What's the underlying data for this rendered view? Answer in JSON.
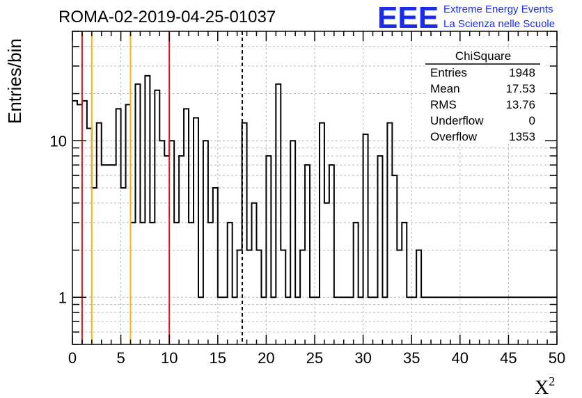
{
  "header": {
    "title": "ROMA-02-2019-04-25-01037"
  },
  "logo": {
    "mark": "EEE",
    "line1": "Extreme Energy Events",
    "line2": "La Scienza nelle Scuole",
    "color": "#1a2cf0"
  },
  "stats_box": {
    "name": "ChiSquare",
    "rows": [
      {
        "label": "Entries",
        "value": "1948"
      },
      {
        "label": "Mean",
        "value": "17.53"
      },
      {
        "label": "RMS",
        "value": "13.76"
      },
      {
        "label": "Underflow",
        "value": "0"
      },
      {
        "label": "Overflow",
        "value": "1353"
      }
    ]
  },
  "chart_data": {
    "type": "bar",
    "histogram_style": "step",
    "title": "ROMA-02-2019-04-25-01037",
    "xlabel": "X",
    "xlabel_superscript": "2",
    "ylabel": "Entries/bin",
    "xlim": [
      0,
      50
    ],
    "ylim": [
      0.5,
      50
    ],
    "yscale": "log",
    "grid": true,
    "bin_width": 0.5,
    "x_ticks": [
      "0",
      "5",
      "10",
      "15",
      "20",
      "25",
      "30",
      "35",
      "40",
      "45",
      "50"
    ],
    "y_ticks": [
      "1",
      "10"
    ],
    "values": [
      18,
      17,
      18,
      12,
      5,
      13,
      7,
      7,
      7,
      16,
      5,
      17,
      3,
      23,
      3,
      26,
      3,
      21,
      10,
      8,
      10,
      3,
      8,
      16,
      3,
      14,
      1,
      10,
      3,
      5,
      1,
      1,
      3,
      1,
      2,
      13,
      2,
      4,
      2,
      1,
      8,
      1,
      23,
      2,
      1,
      10,
      1,
      2,
      7,
      1,
      1,
      13,
      4,
      7,
      1,
      1,
      1,
      1,
      3,
      1,
      11,
      1,
      1,
      8,
      1,
      13,
      6,
      2,
      3,
      1,
      1,
      2,
      1,
      1,
      1,
      1,
      1,
      1,
      1,
      1,
      1,
      1,
      1,
      1,
      1,
      1,
      1,
      1,
      1,
      1,
      1,
      1,
      1,
      1,
      1,
      1,
      1,
      1,
      1,
      1
    ],
    "vertical_lines": [
      {
        "x": 1,
        "color": "#e0141b"
      },
      {
        "x": 2,
        "color": "#f5b800"
      },
      {
        "x": 6,
        "color": "#f5b800"
      },
      {
        "x": 10,
        "color": "#e0141b"
      },
      {
        "x": 17.53,
        "color": "#000000",
        "dashed": true
      }
    ],
    "line_color": "#000000"
  }
}
